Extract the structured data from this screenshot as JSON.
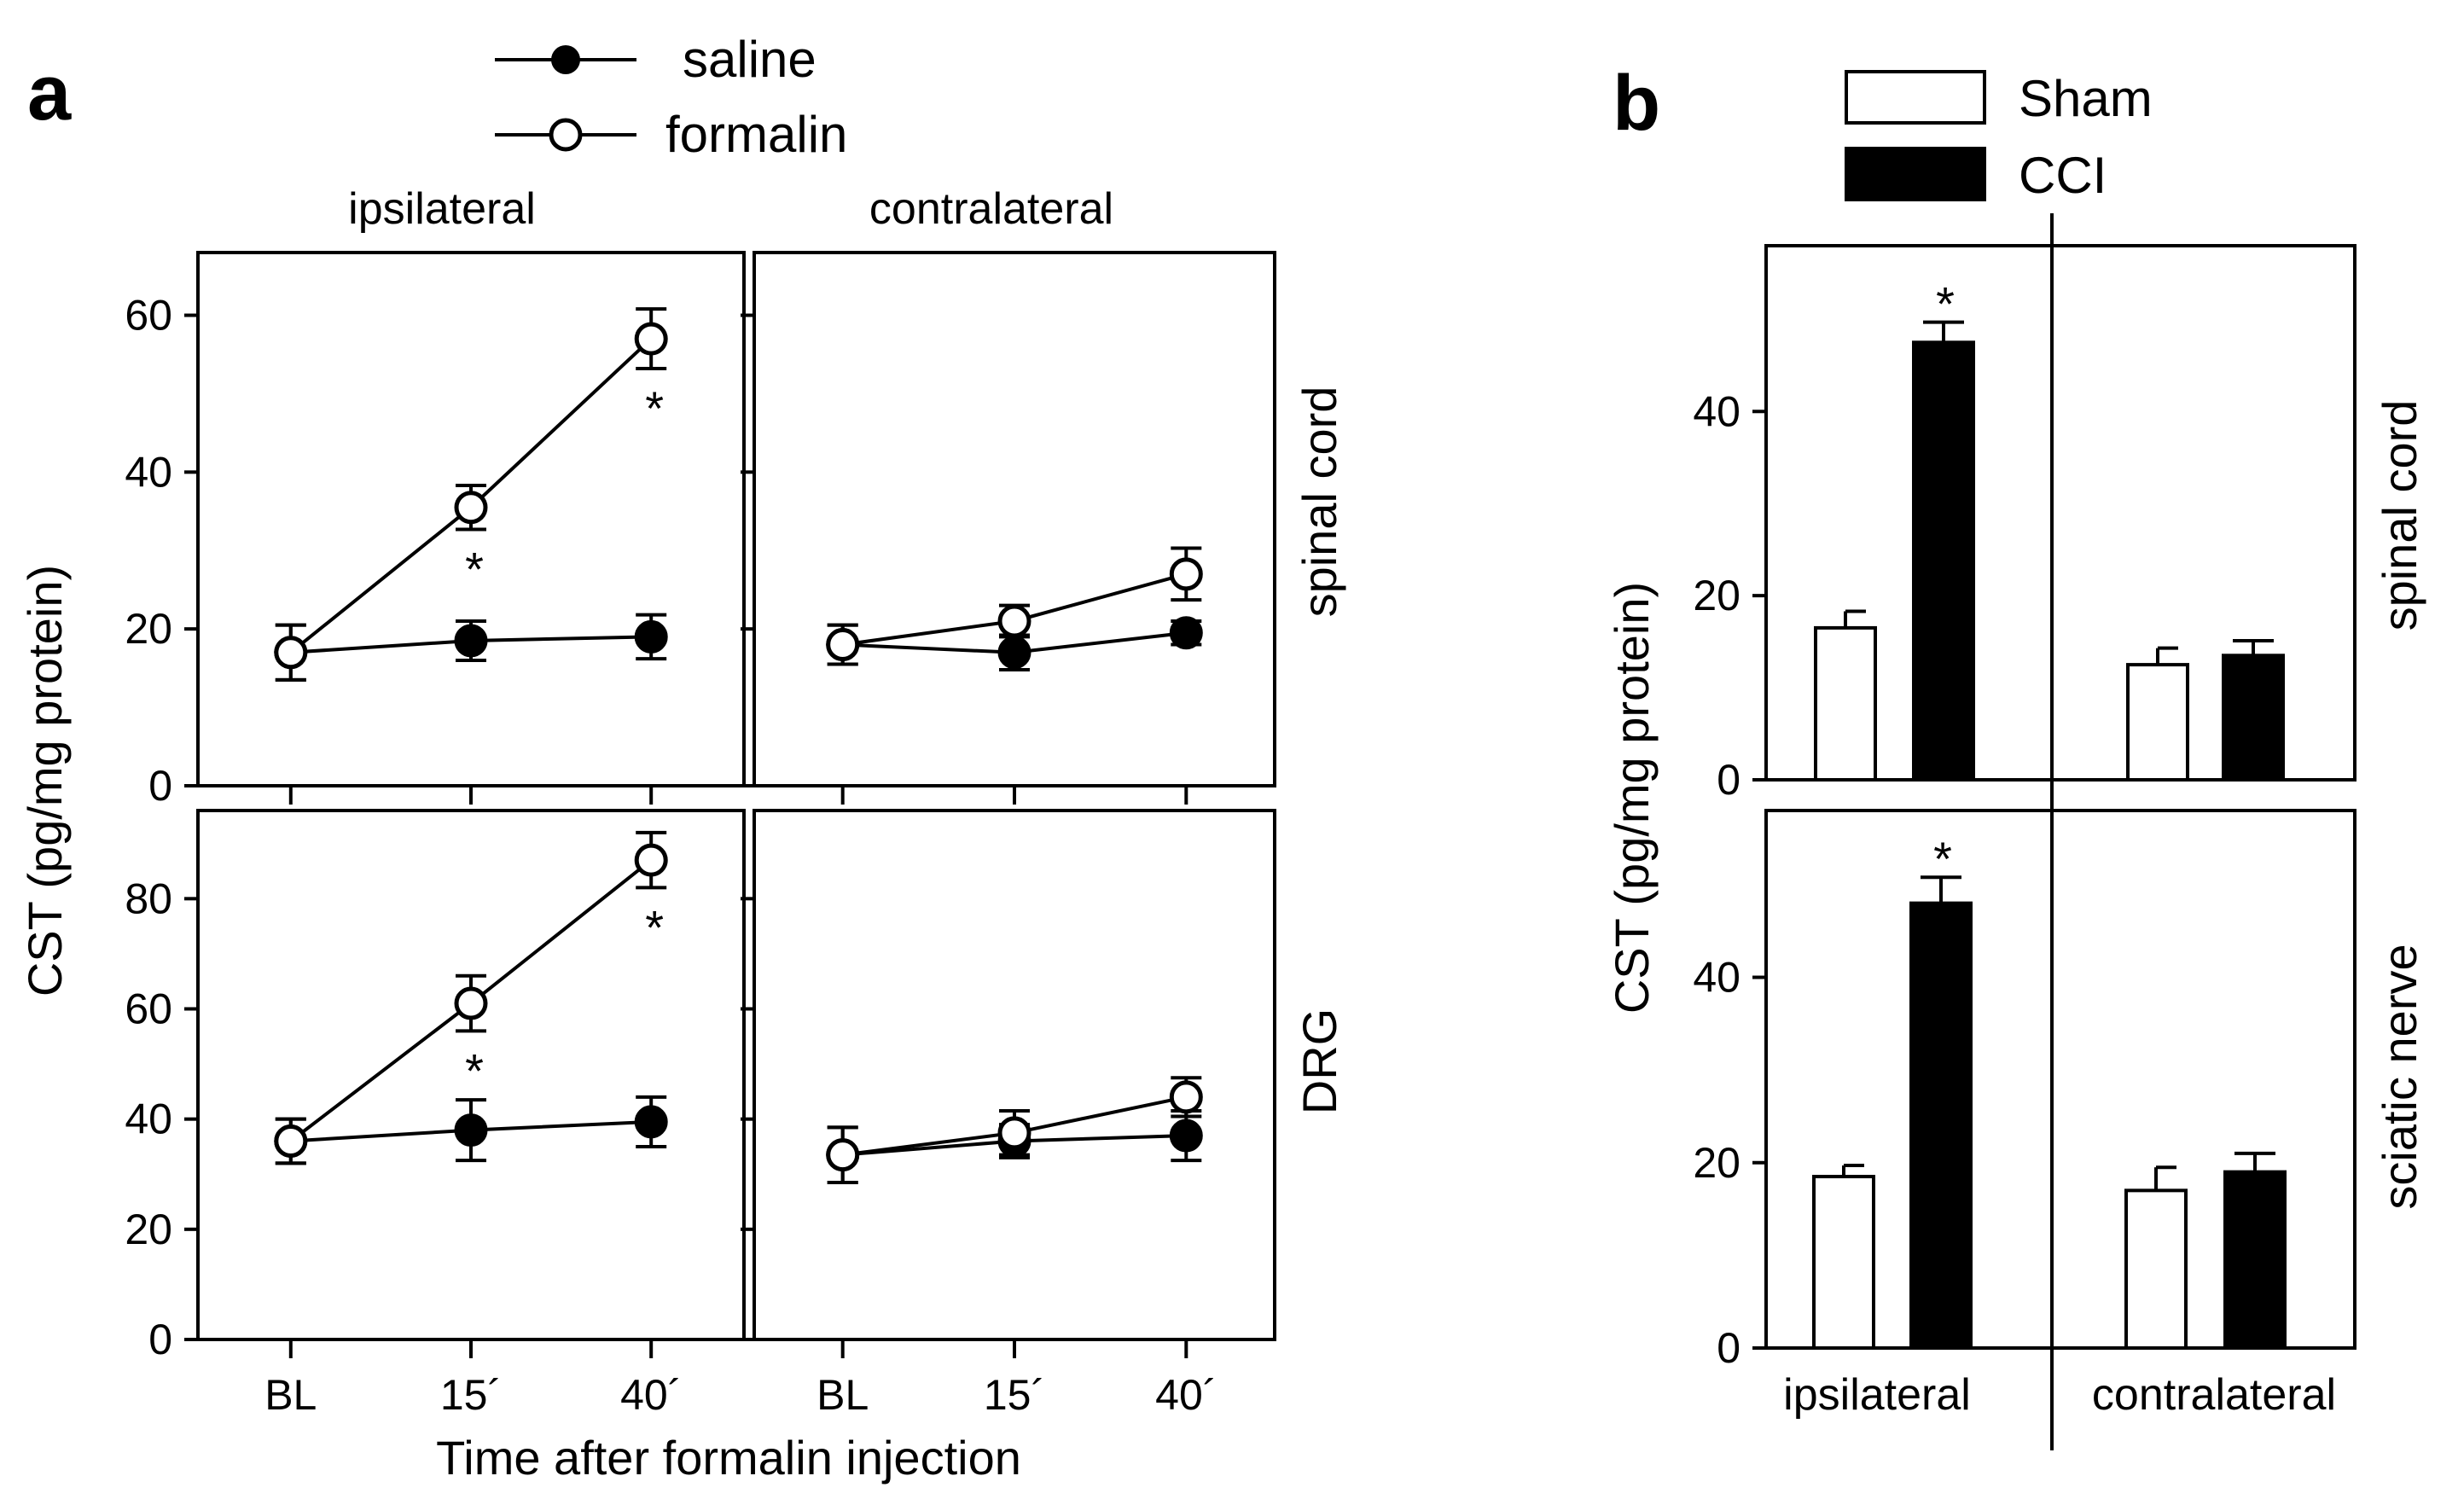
{
  "chart_data": [
    {
      "panel": "a",
      "type": "line",
      "legend": [
        {
          "name": "saline",
          "marker": "filled-circle"
        },
        {
          "name": "formalin",
          "marker": "open-circle"
        }
      ],
      "column_labels": [
        "ipsilateral",
        "contralateral"
      ],
      "ylabel": "CST (pg/mg protein)",
      "xlabel": "Time after formalin injection",
      "x_categories": [
        "BL",
        "15´",
        "40´"
      ],
      "subplots": [
        {
          "side": "ipsilateral",
          "tissue": "spinal cord",
          "ylim": [
            0,
            68
          ],
          "yticks": [
            0,
            20,
            40,
            60
          ],
          "series": [
            {
              "name": "saline",
              "values": [
                17,
                18.5,
                19
              ],
              "errors": [
                3.5,
                2.5,
                2.8
              ],
              "markers": [
                "",
                "",
                ""
              ]
            },
            {
              "name": "formalin",
              "values": [
                17,
                35.5,
                57
              ],
              "errors": [
                3.5,
                2.8,
                3.8
              ],
              "markers": [
                "",
                "*",
                "*"
              ]
            }
          ]
        },
        {
          "side": "contralateral",
          "tissue": "spinal cord",
          "ylim": [
            0,
            68
          ],
          "yticks": [
            0,
            20,
            40,
            60
          ],
          "series": [
            {
              "name": "saline",
              "values": [
                18,
                17,
                19.5
              ],
              "errors": [
                2.5,
                2.2,
                1.5
              ],
              "markers": [
                "",
                "",
                ""
              ]
            },
            {
              "name": "formalin",
              "values": [
                18,
                21,
                27
              ],
              "errors": [
                2.5,
                2,
                3.3
              ],
              "markers": [
                "",
                "",
                ""
              ]
            }
          ]
        },
        {
          "side": "ipsilateral",
          "tissue": "DRG",
          "ylim": [
            0,
            96
          ],
          "yticks": [
            0,
            20,
            40,
            60,
            80
          ],
          "series": [
            {
              "name": "saline",
              "values": [
                36,
                38,
                39.5
              ],
              "errors": [
                4,
                5.5,
                4.5
              ],
              "markers": [
                "",
                "",
                ""
              ]
            },
            {
              "name": "formalin",
              "values": [
                36,
                61,
                87
              ],
              "errors": [
                4,
                5,
                5
              ],
              "markers": [
                "",
                "*",
                "*"
              ]
            }
          ]
        },
        {
          "side": "contralateral",
          "tissue": "DRG",
          "ylim": [
            0,
            96
          ],
          "yticks": [
            0,
            20,
            40,
            60,
            80
          ],
          "series": [
            {
              "name": "saline",
              "values": [
                33.5,
                36,
                37
              ],
              "errors": [
                5,
                3,
                4.5
              ],
              "markers": [
                "",
                "",
                ""
              ]
            },
            {
              "name": "formalin",
              "values": [
                33.5,
                37.5,
                44
              ],
              "errors": [
                5,
                4,
                3.5
              ],
              "markers": [
                "",
                "",
                ""
              ]
            }
          ]
        }
      ]
    },
    {
      "panel": "b",
      "type": "bar",
      "legend": [
        {
          "name": "Sham",
          "fill": "#ffffff"
        },
        {
          "name": "CCI",
          "fill": "#000000"
        }
      ],
      "ylabel": "CST (pg/mg protein)",
      "categories": [
        "ipsilateral",
        "contralateral"
      ],
      "subplots": [
        {
          "tissue": "spinal cord",
          "ylim": [
            0,
            58
          ],
          "yticks": [
            0,
            20,
            40
          ],
          "series": [
            {
              "name": "Sham",
              "values": [
                16.5,
                12.5
              ],
              "errors": [
                1.8,
                1.8
              ],
              "markers": [
                "",
                ""
              ]
            },
            {
              "name": "CCI",
              "values": [
                47.5,
                13.5
              ],
              "errors": [
                2.2,
                1.6
              ],
              "markers": [
                "*",
                ""
              ]
            }
          ]
        },
        {
          "tissue": "sciatic nerve",
          "ylim": [
            0,
            58
          ],
          "yticks": [
            0,
            20,
            40
          ],
          "series": [
            {
              "name": "Sham",
              "values": [
                18.5,
                17
              ],
              "errors": [
                1.2,
                2.5
              ],
              "markers": [
                "",
                ""
              ]
            },
            {
              "name": "CCI",
              "values": [
                48,
                19
              ],
              "errors": [
                2.8,
                2
              ],
              "markers": [
                "*",
                ""
              ]
            }
          ]
        }
      ]
    }
  ]
}
